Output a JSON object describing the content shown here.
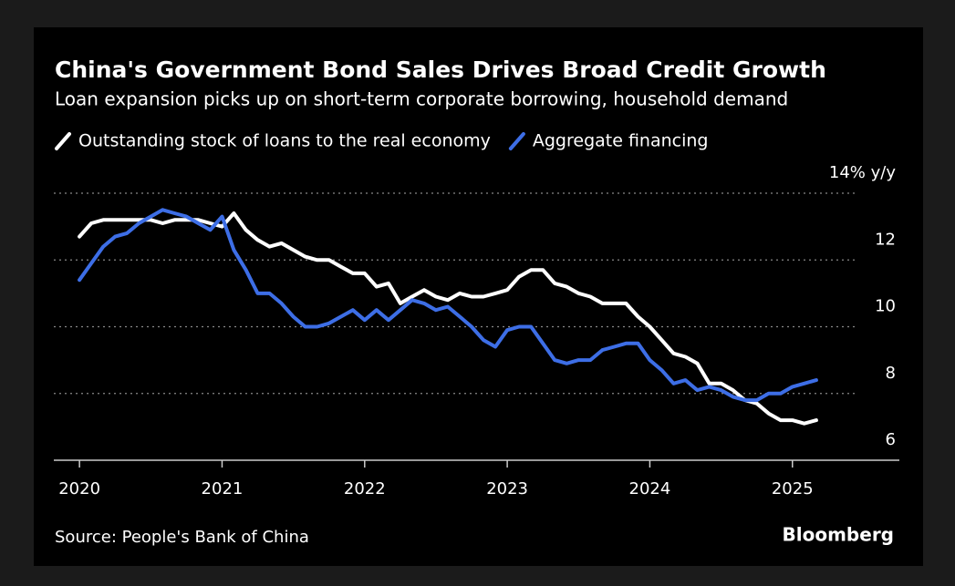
{
  "chart_data": {
    "type": "line",
    "title": "China's Government Bond Sales Drives Broad Credit Growth",
    "subtitle": "Loan expansion picks up on short-term corporate borrowing, household demand",
    "source": "Source: People's Bank of China",
    "brand": "Bloomberg",
    "x": [
      2020,
      2020.083,
      2020.167,
      2020.25,
      2020.333,
      2020.417,
      2020.5,
      2020.583,
      2020.667,
      2020.75,
      2020.833,
      2020.917,
      2021,
      2021.083,
      2021.167,
      2021.25,
      2021.333,
      2021.417,
      2021.5,
      2021.583,
      2021.667,
      2021.75,
      2021.833,
      2021.917,
      2022,
      2022.083,
      2022.167,
      2022.25,
      2022.333,
      2022.417,
      2022.5,
      2022.583,
      2022.667,
      2022.75,
      2022.833,
      2022.917,
      2023,
      2023.083,
      2023.167,
      2023.25,
      2023.333,
      2023.417,
      2023.5,
      2023.583,
      2023.667,
      2023.75,
      2023.833,
      2023.917,
      2024,
      2024.083,
      2024.167,
      2024.25,
      2024.333,
      2024.417,
      2024.5,
      2024.583,
      2024.667,
      2024.75,
      2024.833,
      2024.917,
      2025,
      2025.083,
      2025.167
    ],
    "series": [
      {
        "name": "Outstanding stock of loans to the real economy",
        "color": "#ffffff",
        "values": [
          12.7,
          13.1,
          13.2,
          13.2,
          13.2,
          13.2,
          13.2,
          13.1,
          13.2,
          13.2,
          13.2,
          13.1,
          13.0,
          13.4,
          12.9,
          12.6,
          12.4,
          12.5,
          12.3,
          12.1,
          12.0,
          12.0,
          11.8,
          11.6,
          11.6,
          11.2,
          11.3,
          10.7,
          10.9,
          11.1,
          10.9,
          10.8,
          11.0,
          10.9,
          10.9,
          11.0,
          11.1,
          11.5,
          11.7,
          11.7,
          11.3,
          11.2,
          11.0,
          10.9,
          10.7,
          10.7,
          10.7,
          10.3,
          10.0,
          9.6,
          9.2,
          9.1,
          8.9,
          8.3,
          8.3,
          8.1,
          7.8,
          7.7,
          7.4,
          7.2,
          7.2,
          7.1,
          7.2
        ]
      },
      {
        "name": "Aggregate financing",
        "color": "#3d6ee6",
        "values": [
          11.4,
          11.9,
          12.4,
          12.7,
          12.8,
          13.1,
          13.3,
          13.5,
          13.4,
          13.3,
          13.1,
          12.9,
          13.3,
          12.3,
          11.7,
          11.0,
          11.0,
          10.7,
          10.3,
          10.0,
          10.0,
          10.1,
          10.3,
          10.5,
          10.2,
          10.5,
          10.2,
          10.5,
          10.8,
          10.7,
          10.5,
          10.6,
          10.3,
          10.0,
          9.6,
          9.4,
          9.9,
          10.0,
          10.0,
          9.5,
          9.0,
          8.9,
          9.0,
          9.0,
          9.3,
          9.4,
          9.5,
          9.5,
          9.0,
          8.7,
          8.3,
          8.4,
          8.1,
          8.2,
          8.1,
          7.9,
          7.8,
          7.8,
          8.0,
          8.0,
          8.2,
          8.3,
          8.4
        ]
      }
    ],
    "xlim": [
      2019.82,
      2025.75
    ],
    "xticks": [
      2020,
      2021,
      2022,
      2023,
      2024,
      2025
    ],
    "ylim": [
      6,
      14
    ],
    "yticks": [
      6,
      8,
      10,
      12,
      {
        "value": 14,
        "label": "14% y/y"
      }
    ],
    "grid": true
  }
}
